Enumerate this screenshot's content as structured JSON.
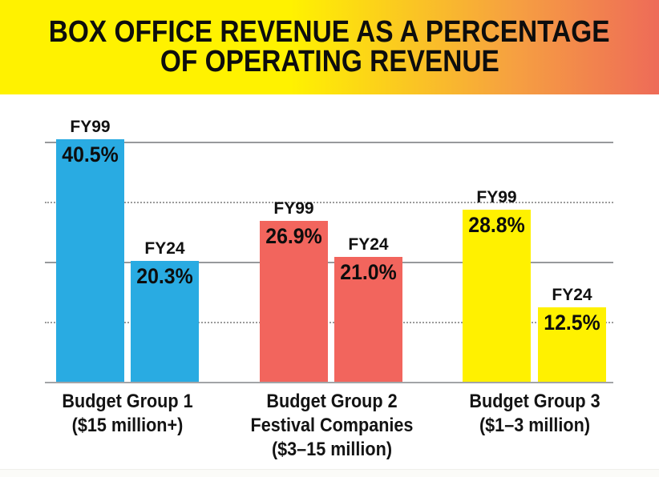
{
  "header": {
    "title_line_1": "BOX OFFICE REVENUE AS A PERCENTAGE",
    "title_line_2": "OF OPERATING REVENUE",
    "gradient_colors": [
      "#FFF200",
      "#F6A041",
      "#EE6B58"
    ]
  },
  "chart_data": {
    "type": "bar",
    "title": "BOX OFFICE REVENUE AS A PERCENTAGE OF OPERATING REVENUE",
    "xlabel": "",
    "ylabel": "",
    "ylim": [
      0,
      45
    ],
    "grid": "horizontal",
    "gridline_ticks_solid": [
      20,
      40
    ],
    "gridline_ticks_dotted": [
      10,
      30
    ],
    "legend_position": "none",
    "categories": [
      "Budget Group 1 ($15 million+)",
      "Budget Group 2 Festival Companies ($3–15 million)",
      "Budget Group 3 ($1–3 million)"
    ],
    "series": [
      {
        "name": "FY99",
        "values": [
          40.5,
          26.9,
          28.8
        ]
      },
      {
        "name": "FY24",
        "values": [
          20.3,
          21.0,
          12.5
        ]
      }
    ],
    "groups": [
      {
        "id": "budget-group-1",
        "label_lines": [
          "Budget Group 1",
          "($15 million+)"
        ],
        "color": "#29ABE2",
        "bars": [
          {
            "period": "FY99",
            "value": 40.5,
            "display": "40.5%"
          },
          {
            "period": "FY24",
            "value": 20.3,
            "display": "20.3%"
          }
        ]
      },
      {
        "id": "budget-group-2",
        "label_lines": [
          "Budget Group 2",
          "Festival Companies",
          "($3–15 million)"
        ],
        "color": "#F2655D",
        "bars": [
          {
            "period": "FY99",
            "value": 26.9,
            "display": "26.9%"
          },
          {
            "period": "FY24",
            "value": 21.0,
            "display": "21.0%"
          }
        ]
      },
      {
        "id": "budget-group-3",
        "label_lines": [
          "Budget Group 3",
          "($1–3 million)"
        ],
        "color": "#FFF100",
        "bars": [
          {
            "period": "FY99",
            "value": 28.8,
            "display": "28.8%"
          },
          {
            "period": "FY24",
            "value": 12.5,
            "display": "12.5%"
          }
        ]
      }
    ],
    "colors": {
      "bar_blue": "#29ABE2",
      "bar_red": "#F2655D",
      "bar_yellow": "#FFF100",
      "gridline_gray": "#97999C",
      "text_black": "#0d0d0d"
    }
  }
}
